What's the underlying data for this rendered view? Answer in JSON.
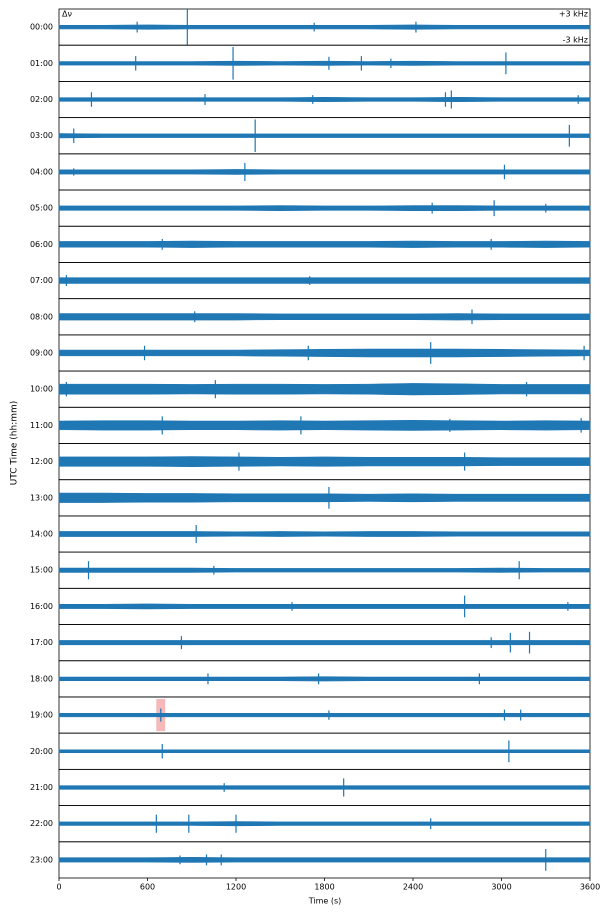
{
  "chart_data": {
    "type": "line",
    "xlabel": "Time (s)",
    "ylabel": "UTC Time (hh:mm)",
    "strip_label": "Δν",
    "scale_labels": [
      "+3 kHz",
      "-3 kHz"
    ],
    "color": "#1f77b4",
    "xlim": [
      0,
      3600
    ],
    "xticks": [
      0,
      600,
      1200,
      1800,
      2400,
      3000,
      3600
    ],
    "ylim": [
      -5,
      5
    ],
    "x": [
      0,
      300,
      600,
      900,
      1200,
      1500,
      1800,
      2100,
      2400,
      2700,
      3000,
      3300,
      3600
    ],
    "highlight": {
      "row": 19,
      "x": [
        660,
        720
      ],
      "color": "#f4a6a6"
    },
    "series": [
      {
        "name": "00:00",
        "values": [
          0.5,
          0.5,
          0.6,
          0.5,
          0.5,
          0.5,
          0.5,
          0.5,
          0.6,
          0.5,
          0.5,
          0.5,
          0.5
        ],
        "spikes": [
          {
            "x": 530,
            "value": 1.5
          },
          {
            "x": 870,
            "value": 5
          },
          {
            "x": 1730,
            "value": 1.2
          },
          {
            "x": 2420,
            "value": 1.5
          }
        ]
      },
      {
        "name": "01:00",
        "values": [
          0.5,
          0.5,
          0.5,
          0.5,
          0.6,
          0.5,
          0.6,
          0.5,
          0.6,
          0.5,
          0.5,
          0.5,
          0.5
        ],
        "spikes": [
          {
            "x": 520,
            "value": 2
          },
          {
            "x": 1180,
            "value": 4.5
          },
          {
            "x": 1830,
            "value": 1.8
          },
          {
            "x": 2050,
            "value": 2
          },
          {
            "x": 2250,
            "value": 1.3
          },
          {
            "x": 3030,
            "value": 3
          }
        ]
      },
      {
        "name": "02:00",
        "values": [
          0.5,
          0.5,
          0.5,
          0.5,
          0.5,
          0.5,
          0.6,
          0.5,
          0.5,
          0.6,
          0.5,
          0.5,
          0.5
        ],
        "spikes": [
          {
            "x": 220,
            "value": 2
          },
          {
            "x": 990,
            "value": 1.5
          },
          {
            "x": 1720,
            "value": 1.2
          },
          {
            "x": 2620,
            "value": 2
          },
          {
            "x": 2660,
            "value": 2.5
          },
          {
            "x": 3520,
            "value": 1.2
          }
        ]
      },
      {
        "name": "03:00",
        "values": [
          0.6,
          0.5,
          0.5,
          0.5,
          0.5,
          0.5,
          0.5,
          0.5,
          0.5,
          0.5,
          0.5,
          0.5,
          0.5
        ],
        "spikes": [
          {
            "x": 100,
            "value": 2
          },
          {
            "x": 1330,
            "value": 4.5
          },
          {
            "x": 3460,
            "value": 3
          }
        ]
      },
      {
        "name": "04:00",
        "values": [
          0.6,
          0.6,
          0.6,
          0.6,
          0.7,
          0.6,
          0.6,
          0.6,
          0.6,
          0.6,
          0.6,
          0.6,
          0.6
        ],
        "spikes": [
          {
            "x": 100,
            "value": 1
          },
          {
            "x": 1260,
            "value": 2.5
          },
          {
            "x": 3020,
            "value": 2
          }
        ]
      },
      {
        "name": "05:00",
        "values": [
          0.6,
          0.6,
          0.6,
          0.6,
          0.6,
          0.7,
          0.6,
          0.6,
          0.7,
          0.7,
          0.6,
          0.6,
          0.6
        ],
        "spikes": [
          {
            "x": 2530,
            "value": 1.5
          },
          {
            "x": 2950,
            "value": 2.2
          },
          {
            "x": 3300,
            "value": 1.2
          }
        ]
      },
      {
        "name": "06:00",
        "values": [
          0.8,
          0.8,
          0.8,
          0.9,
          0.8,
          0.8,
          0.8,
          0.8,
          0.9,
          0.8,
          0.8,
          0.9,
          0.8
        ],
        "spikes": [
          {
            "x": 700,
            "value": 1.5
          },
          {
            "x": 2930,
            "value": 1.5
          }
        ]
      },
      {
        "name": "07:00",
        "values": [
          0.8,
          0.8,
          0.8,
          0.8,
          0.8,
          0.8,
          0.8,
          0.8,
          0.8,
          0.8,
          0.8,
          0.8,
          0.8
        ],
        "spikes": [
          {
            "x": 50,
            "value": 1.5
          },
          {
            "x": 1700,
            "value": 1.2
          }
        ]
      },
      {
        "name": "08:00",
        "values": [
          0.9,
          0.9,
          0.9,
          0.9,
          0.9,
          0.8,
          0.8,
          0.8,
          0.8,
          0.9,
          0.8,
          0.8,
          0.8
        ],
        "spikes": [
          {
            "x": 920,
            "value": 1.5
          },
          {
            "x": 2800,
            "value": 2
          }
        ]
      },
      {
        "name": "09:00",
        "values": [
          0.8,
          0.8,
          0.8,
          0.8,
          0.8,
          0.9,
          1.0,
          1.1,
          1.1,
          1.1,
          1.0,
          0.9,
          0.8
        ],
        "spikes": [
          {
            "x": 580,
            "value": 2
          },
          {
            "x": 1690,
            "value": 2
          },
          {
            "x": 2520,
            "value": 3
          },
          {
            "x": 3560,
            "value": 2
          }
        ]
      },
      {
        "name": "10:00",
        "values": [
          1.4,
          1.4,
          1.4,
          1.3,
          1.4,
          1.4,
          1.3,
          1.4,
          1.6,
          1.5,
          1.3,
          1.3,
          1.3
        ],
        "spikes": [
          {
            "x": 50,
            "value": 2
          },
          {
            "x": 1060,
            "value": 2.5
          },
          {
            "x": 3170,
            "value": 2
          }
        ]
      },
      {
        "name": "11:00",
        "values": [
          1.2,
          1.3,
          1.3,
          1.2,
          1.2,
          1.3,
          1.2,
          1.3,
          1.4,
          1.3,
          1.2,
          1.3,
          1.2
        ],
        "spikes": [
          {
            "x": 700,
            "value": 2.5
          },
          {
            "x": 1640,
            "value": 2.5
          },
          {
            "x": 2650,
            "value": 1.8
          },
          {
            "x": 3540,
            "value": 2
          }
        ]
      },
      {
        "name": "12:00",
        "values": [
          1.3,
          1.3,
          1.3,
          1.4,
          1.3,
          1.2,
          1.3,
          1.2,
          1.2,
          1.2,
          1.1,
          1.1,
          1.1
        ],
        "spikes": [
          {
            "x": 1220,
            "value": 2.5
          },
          {
            "x": 2750,
            "value": 2.5
          }
        ]
      },
      {
        "name": "13:00",
        "values": [
          1.3,
          1.3,
          1.2,
          1.2,
          1.1,
          1.1,
          1.1,
          1.0,
          1.1,
          1.0,
          1.0,
          1.0,
          1.0
        ],
        "spikes": [
          {
            "x": 1830,
            "value": 3
          }
        ]
      },
      {
        "name": "14:00",
        "values": [
          0.7,
          0.7,
          0.7,
          0.7,
          0.6,
          0.7,
          0.6,
          0.7,
          0.7,
          0.6,
          0.6,
          0.6,
          0.6
        ],
        "spikes": [
          {
            "x": 930,
            "value": 2.5
          }
        ]
      },
      {
        "name": "15:00",
        "values": [
          0.6,
          0.6,
          0.6,
          0.6,
          0.5,
          0.5,
          0.5,
          0.5,
          0.5,
          0.5,
          0.6,
          0.5,
          0.5
        ],
        "spikes": [
          {
            "x": 200,
            "value": 2.5
          },
          {
            "x": 1050,
            "value": 1.2
          },
          {
            "x": 3120,
            "value": 2.5
          }
        ]
      },
      {
        "name": "16:00",
        "values": [
          0.6,
          0.6,
          0.7,
          0.6,
          0.6,
          0.6,
          0.6,
          0.6,
          0.6,
          0.6,
          0.6,
          0.6,
          0.6
        ],
        "spikes": [
          {
            "x": 1580,
            "value": 1.2
          },
          {
            "x": 2750,
            "value": 3
          },
          {
            "x": 3450,
            "value": 1.2
          }
        ]
      },
      {
        "name": "17:00",
        "values": [
          0.6,
          0.6,
          0.6,
          0.6,
          0.6,
          0.6,
          0.6,
          0.6,
          0.6,
          0.6,
          0.6,
          0.6,
          0.6
        ],
        "spikes": [
          {
            "x": 830,
            "value": 1.8
          },
          {
            "x": 2930,
            "value": 1.5
          },
          {
            "x": 3060,
            "value": 2.7
          },
          {
            "x": 3190,
            "value": 3
          }
        ]
      },
      {
        "name": "18:00",
        "values": [
          0.5,
          0.5,
          0.5,
          0.5,
          0.5,
          0.5,
          0.6,
          0.5,
          0.5,
          0.5,
          0.5,
          0.5,
          0.5
        ],
        "spikes": [
          {
            "x": 1010,
            "value": 1.5
          },
          {
            "x": 1760,
            "value": 1.5
          },
          {
            "x": 2850,
            "value": 1.5
          }
        ]
      },
      {
        "name": "19:00",
        "values": [
          0.5,
          0.5,
          0.5,
          0.5,
          0.5,
          0.5,
          0.5,
          0.5,
          0.5,
          0.5,
          0.5,
          0.5,
          0.5
        ],
        "spikes": [
          {
            "x": 690,
            "value": 1.8
          },
          {
            "x": 1830,
            "value": 1.3
          },
          {
            "x": 3020,
            "value": 1.5
          },
          {
            "x": 3130,
            "value": 1.5
          }
        ]
      },
      {
        "name": "20:00",
        "values": [
          0.4,
          0.4,
          0.4,
          0.4,
          0.4,
          0.4,
          0.4,
          0.4,
          0.4,
          0.4,
          0.4,
          0.4,
          0.4
        ],
        "spikes": [
          {
            "x": 700,
            "value": 2
          },
          {
            "x": 3050,
            "value": 3
          }
        ]
      },
      {
        "name": "21:00",
        "values": [
          0.5,
          0.5,
          0.5,
          0.5,
          0.5,
          0.5,
          0.5,
          0.5,
          0.5,
          0.5,
          0.5,
          0.5,
          0.5
        ],
        "spikes": [
          {
            "x": 1120,
            "value": 1.2
          },
          {
            "x": 1930,
            "value": 2.5
          }
        ]
      },
      {
        "name": "22:00",
        "values": [
          0.5,
          0.5,
          0.5,
          0.5,
          0.6,
          0.5,
          0.5,
          0.5,
          0.5,
          0.5,
          0.5,
          0.5,
          0.5
        ],
        "spikes": [
          {
            "x": 660,
            "value": 2.5
          },
          {
            "x": 880,
            "value": 2.5
          },
          {
            "x": 1200,
            "value": 2.5
          },
          {
            "x": 2520,
            "value": 1.5
          }
        ]
      },
      {
        "name": "23:00",
        "values": [
          0.6,
          0.6,
          0.6,
          0.7,
          0.6,
          0.6,
          0.6,
          0.6,
          0.6,
          0.6,
          0.6,
          0.6,
          0.6
        ],
        "spikes": [
          {
            "x": 820,
            "value": 1.2
          },
          {
            "x": 1000,
            "value": 1.5
          },
          {
            "x": 1100,
            "value": 1.5
          },
          {
            "x": 3300,
            "value": 3
          }
        ]
      }
    ]
  }
}
